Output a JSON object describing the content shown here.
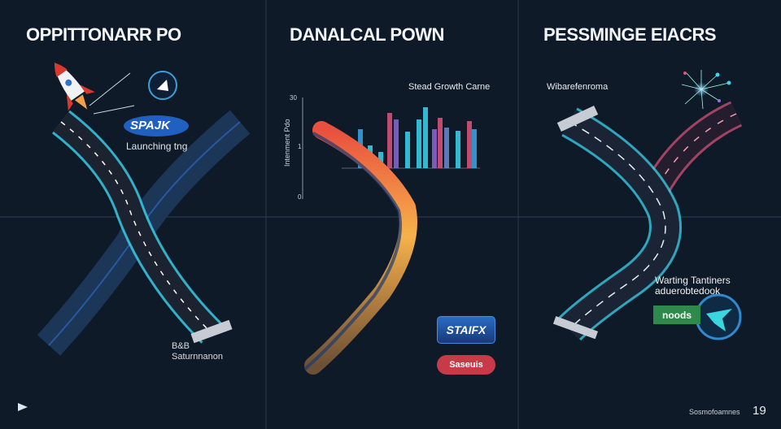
{
  "panels": [
    {
      "title": "OPPITTONARR PO",
      "badge": "SPAJK",
      "caption": "Launching tng",
      "footer_line1": "B&B",
      "footer_line2": "Saturnnanon"
    },
    {
      "title": "DANALCAL POWN",
      "chart_title": "Stead Growth Carne",
      "axis_label": "Intenment Pdo",
      "axis_ticks": [
        "30",
        "1",
        "0"
      ],
      "button_primary": "STAIFX",
      "button_secondary": "Saseuis"
    },
    {
      "title": "PESSMINGE EIACRS",
      "caption": "Wibarefenroma",
      "note_line1": "Warting Tantiners",
      "note_line2": "aduerobtedook",
      "button_green": "noods",
      "footer_text": "Sosmofoamnes",
      "footer_num": "19"
    }
  ],
  "colors": {
    "background": "#0f1a28",
    "road_glow": "#3ad6f0",
    "gradient_start": "#e8503f",
    "gradient_end": "#f7b24a",
    "pink_road": "#e0557a",
    "green_button": "#2e8a4a",
    "red_button": "#c93a48",
    "blue_button": "#1d4f9a"
  }
}
